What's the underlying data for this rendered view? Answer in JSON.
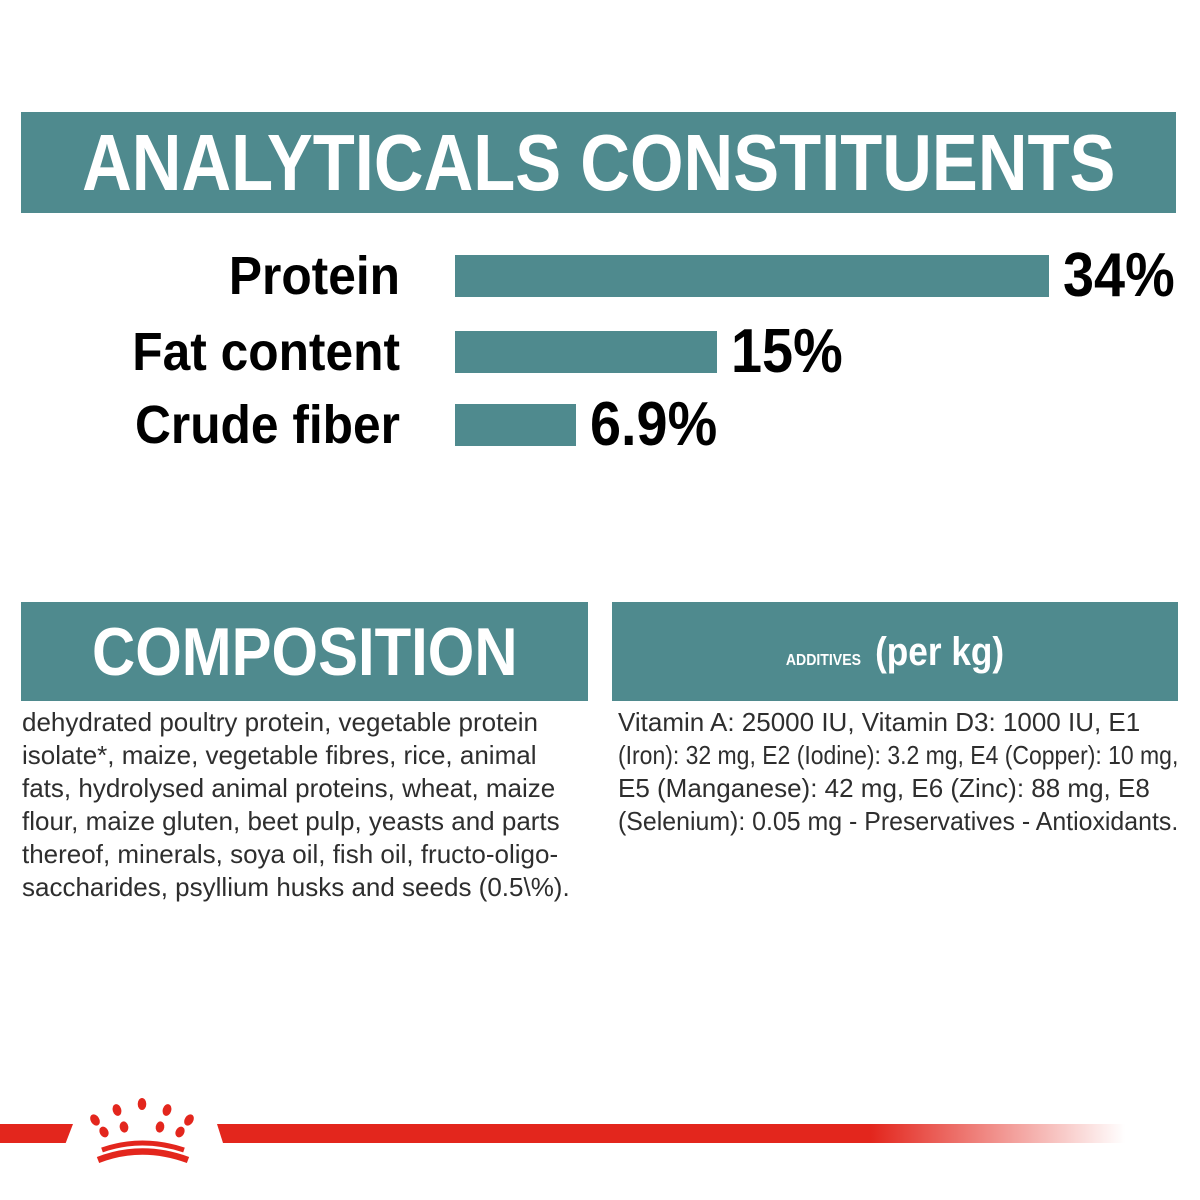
{
  "colors": {
    "teal": "#4F8A8E",
    "red": "#E3261D",
    "body_text": "#2e2e2e",
    "chart_text": "#000000",
    "header_text": "#ffffff"
  },
  "analyticals": {
    "title": "ANALYTICALS CONSTITUENTS"
  },
  "chart_data": {
    "type": "bar",
    "orientation": "horizontal",
    "title": "ANALYTICALS CONSTITUENTS",
    "categories": [
      "Protein",
      "Fat content",
      "Crude fiber"
    ],
    "values": [
      34,
      15,
      6.9
    ],
    "value_labels": [
      "34%",
      "15%",
      "6.9%"
    ],
    "unit": "%",
    "xlim": [
      0,
      34
    ],
    "bar_color": "#4F8A8E",
    "grid": false,
    "legend": false
  },
  "composition": {
    "title": "COMPOSITION",
    "lines": [
      "dehydrated poultry protein, vegetable protein",
      "isolate*, maize, vegetable fibres, rice, animal",
      "fats, hydrolysed animal proteins, wheat, maize",
      "flour, maize gluten, beet pulp, yeasts and parts",
      "thereof, minerals, soya oil, fish oil, fructo-oligo-",
      "saccharides, psyllium husks and seeds (0.5\\%)."
    ]
  },
  "additives": {
    "title": "ADDITIVES",
    "unit_label": "(per kg)",
    "lines": [
      "Vitamin A: 25000 IU, Vitamin D3: 1000 IU, E1",
      "(Iron): 32 mg, E2 (Iodine): 3.2 mg, E4 (Copper): 10 mg,",
      "E5 (Manganese): 42 mg, E6 (Zinc): 88 mg, E8",
      "(Selenium): 0.05 mg - Preservatives - Antioxidants."
    ]
  },
  "footer": {
    "logo": "royal-canin-crown"
  }
}
